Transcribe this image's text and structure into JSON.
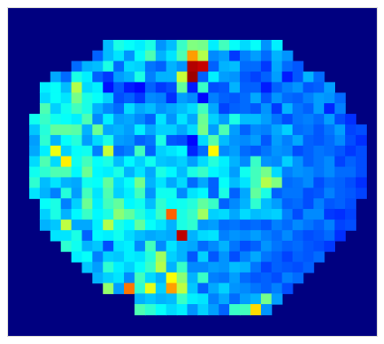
{
  "chart_data": {
    "type": "heatmap",
    "title": "",
    "xlabel": "",
    "ylabel": "",
    "colormap": "jet",
    "background_color": "#000080",
    "colormap_range": [
      0,
      1
    ],
    "grid": false,
    "legend": "none",
    "n_rows": 31,
    "n_cols": 35,
    "values": [
      [
        0,
        0,
        0,
        0,
        0,
        0,
        0,
        0,
        0,
        0,
        0,
        0,
        0,
        0,
        0,
        0,
        0,
        0,
        0,
        0,
        0,
        0,
        0,
        0,
        0,
        0,
        0,
        0,
        0,
        0,
        0,
        0,
        0,
        0,
        0
      ],
      [
        0,
        0,
        0,
        0,
        0,
        0,
        0,
        0,
        0,
        0,
        0,
        0,
        0,
        0,
        0,
        0,
        0,
        0,
        0,
        0,
        0,
        0,
        0,
        0,
        0,
        0,
        0,
        0,
        0,
        0,
        0,
        0,
        0,
        0,
        0
      ],
      [
        0,
        0,
        0,
        0,
        0,
        0,
        0,
        0,
        0,
        0,
        0,
        0,
        0,
        0,
        0,
        0,
        0,
        0,
        0,
        0,
        0,
        0,
        0,
        0,
        0,
        0,
        0,
        0,
        0,
        0,
        0,
        0,
        0,
        0,
        0
      ],
      [
        0,
        0,
        0,
        0,
        0,
        0,
        0,
        0,
        0,
        0.31,
        0.4,
        0.38,
        0.36,
        0.4,
        0.27,
        0.31,
        0.43,
        0.5,
        0.49,
        0.36,
        0.44,
        0.38,
        0.34,
        0.38,
        0.27,
        0.36,
        0,
        0,
        0,
        0,
        0,
        0,
        0,
        0,
        0
      ],
      [
        0,
        0,
        0,
        0,
        0,
        0,
        0,
        0,
        0.22,
        0.31,
        0.35,
        0.27,
        0.38,
        0.45,
        0.3,
        0.35,
        0.45,
        0.72,
        0.55,
        0.26,
        0.28,
        0.18,
        0.25,
        0.28,
        0.23,
        0.3,
        0.27,
        0,
        0,
        0,
        0,
        0,
        0,
        0,
        0
      ],
      [
        0,
        0,
        0,
        0,
        0,
        0,
        0.23,
        0.3,
        0.31,
        0.4,
        0.23,
        0.34,
        0.33,
        0.24,
        0.22,
        0.3,
        0.27,
        0.95,
        0.93,
        0.22,
        0.3,
        0.31,
        0.23,
        0.23,
        0.18,
        0.29,
        0.23,
        0.21,
        0,
        0,
        0,
        0,
        0,
        0,
        0
      ],
      [
        0,
        0,
        0,
        0,
        0.29,
        0.23,
        0.4,
        0.36,
        0.22,
        0.18,
        0.28,
        0.3,
        0.4,
        0.25,
        0.3,
        0.3,
        0.57,
        0.97,
        0.22,
        0.36,
        0.28,
        0.27,
        0.21,
        0.19,
        0.22,
        0.28,
        0.15,
        0.21,
        0.3,
        0.23,
        0,
        0,
        0,
        0,
        0
      ],
      [
        0,
        0,
        0,
        0.36,
        0.38,
        0.31,
        0.55,
        0.34,
        0.36,
        0.14,
        0.21,
        0.15,
        0.13,
        0.22,
        0.18,
        0.2,
        0.47,
        0.15,
        0.43,
        0.2,
        0.21,
        0.3,
        0.22,
        0.22,
        0.15,
        0.22,
        0.25,
        0.27,
        0.21,
        0.22,
        0.28,
        0,
        0,
        0,
        0
      ],
      [
        0,
        0,
        0,
        0.34,
        0.38,
        0.35,
        0.49,
        0.4,
        0.38,
        0.33,
        0.2,
        0.22,
        0.18,
        0.26,
        0.25,
        0.17,
        0.28,
        0.26,
        0.13,
        0.25,
        0.22,
        0.21,
        0.23,
        0.29,
        0.21,
        0.27,
        0.23,
        0.22,
        0.25,
        0.28,
        0.27,
        0.23,
        0,
        0,
        0
      ],
      [
        0,
        0,
        0,
        0.45,
        0.33,
        0.39,
        0.44,
        0.4,
        0.3,
        0.26,
        0.23,
        0.34,
        0.29,
        0.31,
        0.27,
        0.29,
        0.31,
        0.34,
        0.44,
        0.29,
        0.19,
        0.22,
        0.23,
        0.21,
        0.27,
        0.18,
        0.3,
        0.24,
        0.22,
        0.28,
        0.16,
        0.25,
        0,
        0,
        0
      ],
      [
        0,
        0,
        0.39,
        0.43,
        0.39,
        0.38,
        0.36,
        0.45,
        0.26,
        0.36,
        0.28,
        0.29,
        0.26,
        0.22,
        0.35,
        0.27,
        0.35,
        0.29,
        0.48,
        0.33,
        0.28,
        0.4,
        0.31,
        0.31,
        0.28,
        0.24,
        0.2,
        0.24,
        0.25,
        0.23,
        0.28,
        0.2,
        0.17,
        0,
        0
      ],
      [
        0,
        0,
        0.32,
        0.41,
        0.47,
        0.47,
        0.46,
        0.3,
        0.48,
        0.29,
        0.3,
        0.28,
        0.36,
        0.29,
        0.33,
        0.33,
        0.29,
        0.34,
        0.49,
        0.28,
        0.45,
        0.28,
        0.22,
        0.26,
        0.25,
        0.29,
        0.33,
        0.23,
        0.24,
        0.21,
        0.24,
        0.28,
        0.19,
        0.2,
        0
      ],
      [
        0,
        0,
        0.28,
        0.42,
        0.3,
        0.38,
        0.41,
        0.28,
        0.34,
        0.4,
        0.28,
        0.27,
        0.22,
        0.24,
        0.4,
        0.21,
        0.2,
        0.13,
        0.34,
        0.46,
        0.31,
        0.27,
        0.26,
        0.28,
        0.21,
        0.28,
        0.25,
        0.29,
        0.22,
        0.21,
        0.23,
        0.26,
        0.2,
        0.17,
        0
      ],
      [
        0,
        0,
        0.29,
        0.36,
        0.61,
        0.33,
        0.38,
        0.39,
        0.25,
        0.57,
        0.23,
        0.25,
        0.44,
        0.22,
        0.33,
        0.35,
        0.37,
        0.16,
        0.23,
        0.63,
        0.26,
        0.28,
        0.23,
        0.21,
        0.24,
        0.27,
        0.26,
        0.2,
        0.22,
        0.24,
        0.23,
        0.21,
        0.18,
        0.2,
        0
      ],
      [
        0,
        0,
        0.34,
        0.45,
        0.34,
        0.64,
        0.39,
        0.44,
        0.38,
        0.4,
        0.31,
        0.37,
        0.33,
        0.39,
        0.32,
        0.31,
        0.33,
        0.28,
        0.34,
        0.41,
        0.36,
        0.3,
        0.26,
        0.43,
        0.27,
        0.26,
        0.33,
        0.27,
        0.22,
        0.24,
        0.26,
        0.19,
        0.22,
        0.2,
        0
      ],
      [
        0,
        0,
        0.39,
        0.42,
        0.45,
        0.45,
        0.37,
        0.48,
        0.37,
        0.36,
        0.4,
        0.3,
        0.35,
        0.29,
        0.4,
        0.37,
        0.31,
        0.4,
        0.43,
        0.37,
        0.35,
        0.28,
        0.39,
        0.44,
        0.49,
        0.34,
        0.25,
        0.27,
        0.26,
        0.24,
        0.26,
        0.23,
        0.23,
        0.2,
        0
      ],
      [
        0,
        0,
        0.42,
        0.31,
        0.35,
        0.3,
        0.29,
        0.39,
        0.38,
        0.47,
        0.34,
        0.38,
        0.49,
        0.3,
        0.35,
        0.29,
        0.34,
        0.23,
        0.29,
        0.22,
        0.38,
        0.31,
        0.35,
        0.44,
        0.55,
        0.5,
        0.23,
        0.24,
        0.26,
        0.2,
        0.23,
        0.22,
        0.2,
        0.17,
        0
      ],
      [
        0,
        0,
        0.35,
        0.3,
        0.25,
        0.41,
        0.28,
        0.44,
        0.35,
        0.45,
        0.33,
        0.36,
        0.44,
        0.27,
        0.39,
        0.39,
        0.26,
        0.35,
        0.37,
        0.22,
        0.4,
        0.22,
        0.29,
        0.47,
        0.4,
        0.22,
        0.24,
        0.24,
        0.2,
        0.21,
        0.25,
        0.22,
        0.21,
        0.19,
        0
      ],
      [
        0,
        0,
        0,
        0.38,
        0.4,
        0.25,
        0.33,
        0.48,
        0.36,
        0.44,
        0.47,
        0.37,
        0.39,
        0.31,
        0.42,
        0.38,
        0.39,
        0.41,
        0.47,
        0.43,
        0.22,
        0.26,
        0.3,
        0.42,
        0.31,
        0.28,
        0.22,
        0.23,
        0.2,
        0.25,
        0.21,
        0.22,
        0.2,
        0,
        0
      ],
      [
        0,
        0,
        0,
        0.33,
        0.4,
        0.3,
        0.37,
        0.43,
        0.37,
        0.4,
        0.51,
        0.47,
        0.41,
        0.36,
        0.43,
        0.78,
        0.4,
        0.43,
        0.53,
        0.33,
        0.34,
        0.29,
        0.34,
        0.31,
        0.32,
        0.33,
        0.25,
        0.2,
        0.26,
        0.26,
        0.18,
        0.17,
        0.19,
        0,
        0
      ],
      [
        0,
        0,
        0,
        0.3,
        0.32,
        0.56,
        0.29,
        0.29,
        0.36,
        0.55,
        0.4,
        0.37,
        0.47,
        0.38,
        0.35,
        0.3,
        0.4,
        0.42,
        0.27,
        0.28,
        0.23,
        0.24,
        0.22,
        0.23,
        0.21,
        0.25,
        0.23,
        0.26,
        0.24,
        0.22,
        0.25,
        0.19,
        0.2,
        0,
        0
      ],
      [
        0,
        0,
        0,
        0,
        0.35,
        0.35,
        0.4,
        0.22,
        0.37,
        0.36,
        0.39,
        0.34,
        0.31,
        0.29,
        0.3,
        0.29,
        0.94,
        0.3,
        0.34,
        0.35,
        0.25,
        0.27,
        0.26,
        0.28,
        0.25,
        0.23,
        0.26,
        0.22,
        0.2,
        0.21,
        0.23,
        0.17,
        0,
        0,
        0
      ],
      [
        0,
        0,
        0,
        0,
        0,
        0.42,
        0.39,
        0.3,
        0.32,
        0.2,
        0.35,
        0.36,
        0.26,
        0.44,
        0.26,
        0.35,
        0.3,
        0.29,
        0.23,
        0.26,
        0.3,
        0.24,
        0.2,
        0.22,
        0.27,
        0.24,
        0.22,
        0.23,
        0.21,
        0.2,
        0.18,
        0,
        0,
        0,
        0
      ],
      [
        0,
        0,
        0,
        0,
        0,
        0,
        0.36,
        0.38,
        0.25,
        0.33,
        0.32,
        0.36,
        0.35,
        0.41,
        0.53,
        0.33,
        0.3,
        0.21,
        0.33,
        0.21,
        0.27,
        0.2,
        0.25,
        0.29,
        0.24,
        0.22,
        0.19,
        0.22,
        0.21,
        0.23,
        0,
        0,
        0,
        0,
        0
      ],
      [
        0,
        0,
        0,
        0,
        0,
        0,
        0,
        0.32,
        0.28,
        0.42,
        0.36,
        0.33,
        0.38,
        0.43,
        0.55,
        0.3,
        0.43,
        0.26,
        0.26,
        0.28,
        0.27,
        0.31,
        0.3,
        0.24,
        0.19,
        0.22,
        0.21,
        0.2,
        0.22,
        0,
        0,
        0,
        0,
        0,
        0
      ],
      [
        0,
        0,
        0,
        0,
        0,
        0,
        0,
        0,
        0.3,
        0.33,
        0.35,
        0.26,
        0.44,
        0.34,
        0.3,
        0.62,
        0.51,
        0.3,
        0.43,
        0.25,
        0.24,
        0.28,
        0.23,
        0.21,
        0.22,
        0.2,
        0.25,
        0.23,
        0,
        0,
        0,
        0,
        0,
        0,
        0
      ],
      [
        0,
        0,
        0,
        0,
        0,
        0,
        0,
        0,
        0,
        0.52,
        0.28,
        0.76,
        0.42,
        0.6,
        0.33,
        0.72,
        0.56,
        0.32,
        0.22,
        0.29,
        0.33,
        0.27,
        0.26,
        0.24,
        0.22,
        0.25,
        0.2,
        0,
        0,
        0,
        0,
        0,
        0,
        0,
        0
      ],
      [
        0,
        0,
        0,
        0,
        0,
        0,
        0,
        0,
        0,
        0,
        0,
        0,
        0.3,
        0.32,
        0.3,
        0.31,
        0.43,
        0.36,
        0.35,
        0.25,
        0.29,
        0.23,
        0.28,
        0.3,
        0.49,
        0.28,
        0,
        0,
        0,
        0,
        0,
        0,
        0,
        0,
        0
      ],
      [
        0,
        0,
        0,
        0,
        0,
        0,
        0,
        0,
        0,
        0,
        0,
        0,
        0.45,
        0.42,
        0.38,
        0.34,
        0.36,
        0.27,
        0.33,
        0.28,
        0.22,
        0.43,
        0.44,
        0.66,
        0.27,
        0,
        0,
        0,
        0,
        0,
        0,
        0,
        0,
        0,
        0
      ],
      [
        0,
        0,
        0,
        0,
        0,
        0,
        0,
        0,
        0,
        0,
        0,
        0,
        0,
        0,
        0,
        0,
        0,
        0,
        0,
        0,
        0,
        0,
        0,
        0,
        0,
        0,
        0,
        0,
        0,
        0,
        0,
        0,
        0,
        0,
        0
      ],
      [
        0,
        0,
        0,
        0,
        0,
        0,
        0,
        0,
        0,
        0,
        0,
        0,
        0,
        0,
        0,
        0,
        0,
        0,
        0,
        0,
        0,
        0,
        0,
        0,
        0,
        0,
        0,
        0,
        0,
        0,
        0,
        0,
        0,
        0,
        0
      ]
    ]
  }
}
